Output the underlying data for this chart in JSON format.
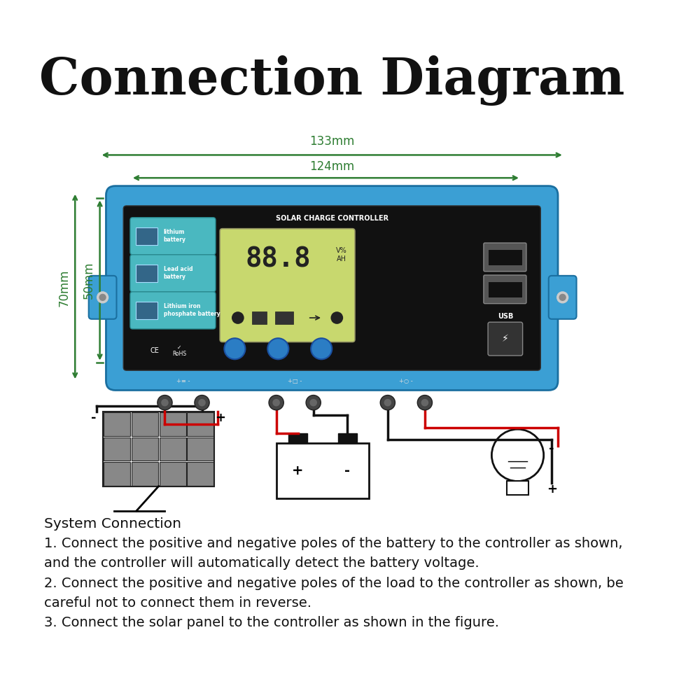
{
  "title": "Connection Diagram",
  "title_fontsize": 52,
  "title_fontweight": "bold",
  "bg_color": "#ffffff",
  "dim_color": "#2e7d32",
  "dim_133": "133mm",
  "dim_124": "124mm",
  "dim_70": "70mm",
  "dim_50": "50mm",
  "controller_label": "SOLAR CHARGE CONTROLLER",
  "battery_types": [
    "lithium\nbattery",
    "Lead acid\nbattery",
    "Lithium iron\nphosphate battery"
  ],
  "display_text": "88.8",
  "display_units": "V%\nAH",
  "usb_label": "USB",
  "blue_color": "#3b9fd4",
  "black_panel": "#111111",
  "lcd_color": "#c8d86e",
  "btn_color": "#2b7dc4",
  "system_connection_title": "System Connection",
  "instructions": [
    "1. Connect the positive and negative poles of the battery to the controller as shown,",
    "and the controller will automatically detect the battery voltage.",
    "2. Connect the positive and negative poles of the load to the controller as shown, be",
    "careful not to connect them in reverse.",
    "3. Connect the solar panel to the controller as shown in the figure."
  ],
  "text_fontsize": 14.5
}
